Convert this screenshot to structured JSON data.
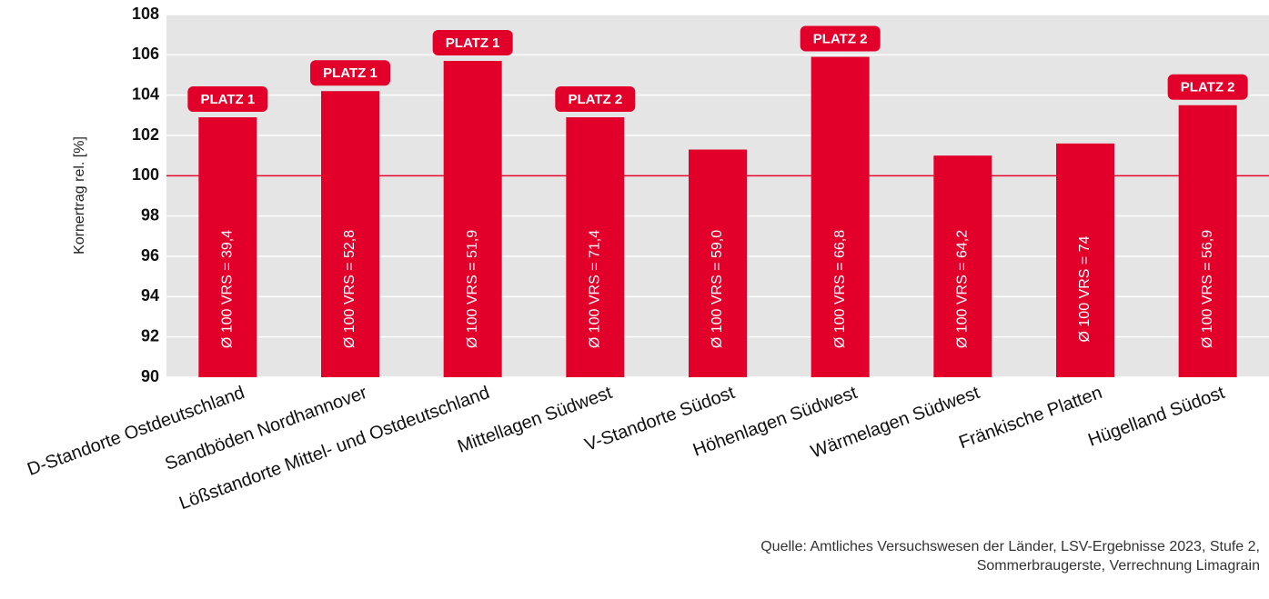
{
  "chart_data": {
    "type": "bar",
    "y_label": "Kornertrag rel. [%]",
    "categories": [
      "D-Standorte Ostdeutschland",
      "Sandböden Nordhannover",
      "Lößstandorte Mittel- und Ostdeutschland",
      "Mittellagen Südwest",
      "V-Standorte Südost",
      "Höhenlagen Südwest",
      "Wärmelagen Südwest",
      "Fränkische Platten",
      "Hügelland Südost"
    ],
    "values": [
      102.9,
      104.2,
      105.7,
      102.9,
      101.3,
      105.9,
      101.0,
      101.6,
      103.5
    ],
    "bar_labels": [
      "Ø 100 VRS = 39,4",
      "Ø 100 VRS = 52,8",
      "Ø 100 VRS = 51,9",
      "Ø 100 VRS = 71,4",
      "Ø 100 VRS = 59,0",
      "Ø 100 VRS = 66,8",
      "Ø 100 VRS = 64,2",
      "Ø 100 VRS = 74",
      "Ø 100 VRS = 56,9"
    ],
    "badges": [
      "PLATZ 1",
      "PLATZ 1",
      "PLATZ 1",
      "PLATZ 2",
      null,
      "PLATZ 2",
      null,
      null,
      "PLATZ 2"
    ],
    "color": "#e2002a",
    "reference_line": 100,
    "ylim": [
      90,
      108
    ],
    "yticks": [
      90,
      92,
      94,
      96,
      98,
      100,
      102,
      104,
      106,
      108
    ],
    "grid": true,
    "source": [
      "Quelle: Amtliches Versuchswesen der Länder, LSV-Ergebnisse 2023, Stufe 2,",
      "Sommerbraugerste, Verrechnung Limagrain"
    ]
  }
}
